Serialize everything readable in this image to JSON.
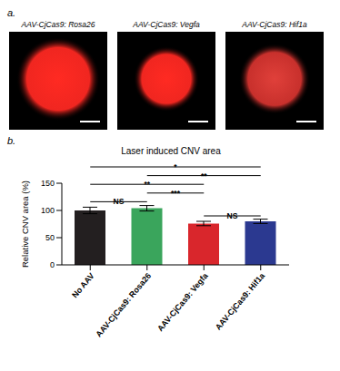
{
  "panels": [
    {
      "label": "a.",
      "images": [
        "AAV-CjCas9: Rosa26",
        "AAV-CjCas9: Vegfa",
        "AAV-CjCas9: Hif1a"
      ]
    },
    {
      "label": "b."
    }
  ],
  "chart_data": {
    "type": "bar",
    "title": "Laser induced CNV area",
    "y_label": "Relative CNV area (%)",
    "categories": [
      "No AAV",
      "AAV-CjCas9: Rosa26",
      "AAV-CjCas9: Vegfa",
      "AAV-CjCas9: Hif1a"
    ],
    "values": [
      100,
      104,
      76,
      80
    ],
    "errors": [
      6,
      5,
      4,
      4
    ],
    "colors": [
      "#231f20",
      "#3aa55c",
      "#d9262c",
      "#2b3990"
    ],
    "ylim": [
      0,
      150
    ],
    "yticks": [
      0,
      50,
      100,
      150
    ],
    "grid": false,
    "significance": [
      {
        "from": 0,
        "to": 3,
        "y": 180,
        "label": "*"
      },
      {
        "from": 1,
        "to": 3,
        "y": 164,
        "label": "**"
      },
      {
        "from": 0,
        "to": 2,
        "y": 148,
        "label": "**"
      },
      {
        "from": 1,
        "to": 2,
        "y": 132,
        "label": "***"
      },
      {
        "from": 0,
        "to": 1,
        "y": 116,
        "label": "NS"
      },
      {
        "from": 2,
        "to": 3,
        "y": 90,
        "label": "NS"
      }
    ]
  }
}
